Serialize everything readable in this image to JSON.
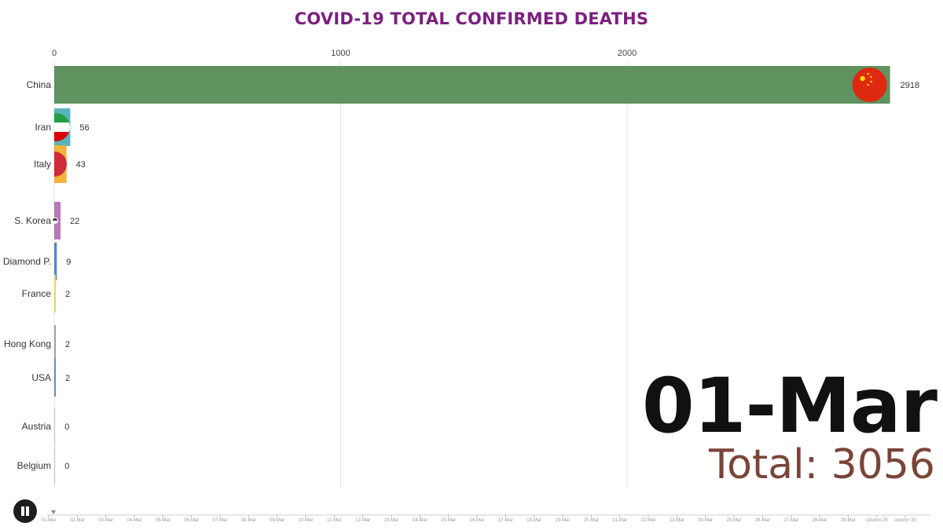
{
  "title": "COVID-19 TOTAL CONFIRMED DEATHS",
  "date": "01-Mar",
  "total_label": "Total: 3056",
  "controls": {
    "pause_icon": "pause-icon"
  },
  "timeline": {
    "labels": [
      "01-Mar",
      "02-Mar",
      "03-Mar",
      "04-Mar",
      "05-Mar",
      "06-Mar",
      "07-Mar",
      "08-Mar",
      "09-Mar",
      "10-Mar",
      "11-Mar",
      "12-Mar",
      "13-Mar",
      "14-Mar",
      "15-Mar",
      "16-Mar",
      "17-Mar",
      "18-Mar",
      "19-Mar",
      "20-Mar",
      "21-Mar",
      "22-Mar",
      "23-Mar",
      "24-Mar",
      "25-Mar",
      "26-Mar",
      "27-Mar",
      "28-Mar",
      "29-Mar",
      "column 29",
      "column 30"
    ],
    "current": 0
  },
  "chart_data": {
    "type": "bar",
    "orientation": "horizontal",
    "title": "COVID-19 TOTAL CONFIRMED DEATHS",
    "categories": [
      "China",
      "Iran",
      "Italy",
      "S. Korea",
      "Diamond P.",
      "France",
      "Hong Kong",
      "USA",
      "Austria",
      "Belgium"
    ],
    "values": [
      2918,
      56,
      43,
      22,
      9,
      2,
      2,
      2,
      0,
      0
    ],
    "value_labels": [
      "2918",
      "56",
      "43",
      "22",
      "9",
      "2",
      "2",
      "2",
      "0",
      "0"
    ],
    "colors": [
      "#5f9360",
      "#5bb3bd",
      "#f3b23b",
      "#b979b9",
      "#4f88c8",
      "#f0d070",
      "#9aa3ad",
      "#5d8ec6",
      "#bbbbbb",
      "#bbbbbb"
    ],
    "flags": [
      "china-flag-icon",
      "iran-flag-icon",
      "italy-flag-icon",
      "south-korea-flag-icon",
      "",
      "",
      "",
      "",
      "",
      ""
    ],
    "xticks": [
      0,
      1000,
      2000
    ],
    "xtick_labels": [
      "0",
      "1000",
      "2000"
    ],
    "xlim": [
      0,
      3000
    ],
    "grid": true,
    "xlabel": "",
    "ylabel": ""
  }
}
